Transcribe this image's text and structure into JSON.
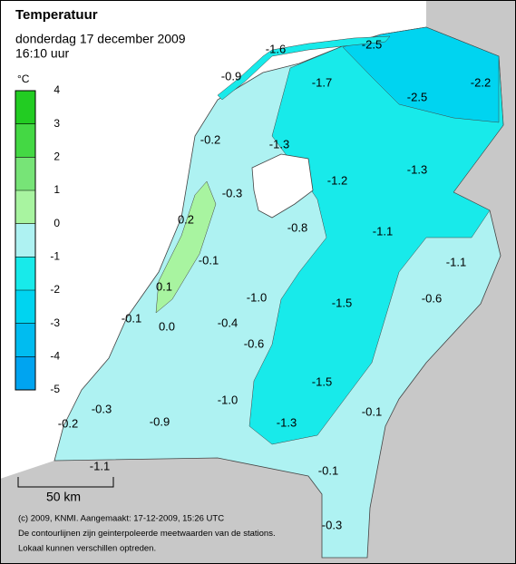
{
  "header": {
    "title": "Temperatuur",
    "date": "donderdag 17 december 2009",
    "time": "16:10 uur"
  },
  "legend": {
    "unit": "°C",
    "ticks": [
      4,
      3,
      2,
      1,
      0,
      -1,
      -2,
      -3,
      -4,
      -5
    ],
    "colors": [
      "#22cc22",
      "#44d844",
      "#77e477",
      "#a8f4a0",
      "#aef2f2",
      "#18eaea",
      "#00d4f0",
      "#00bcf0",
      "#00a4f0"
    ]
  },
  "stations": [
    "-1.6",
    "-2.5",
    "-0.9",
    "-1.7",
    "-2.5",
    "-2.2",
    "-0.2",
    "-1.3",
    "-1.2",
    "-1.3",
    "-0.3",
    "0.2",
    "-0.8",
    "-1.1",
    "-1.1",
    "-0.1",
    "0.1",
    "-1.0",
    "-1.5",
    "-0.6",
    "-0.1",
    "0.0",
    "-0.4",
    "-0.6",
    "-1.5",
    "-1.0",
    "-0.3",
    "-0.1",
    "-0.2",
    "-0.9",
    "-1.3",
    "-1.1",
    "-0.1",
    "-0.3"
  ],
  "scale": {
    "label": "50 km"
  },
  "footer": [
    "(c) 2009, KNMI. Aangemaakt: 17-12-2009, 15:26 UTC",
    "De contourlijnen zijn geinterpoleerde meetwaarden van de stations.",
    "Lokaal kunnen verschillen optreden."
  ]
}
